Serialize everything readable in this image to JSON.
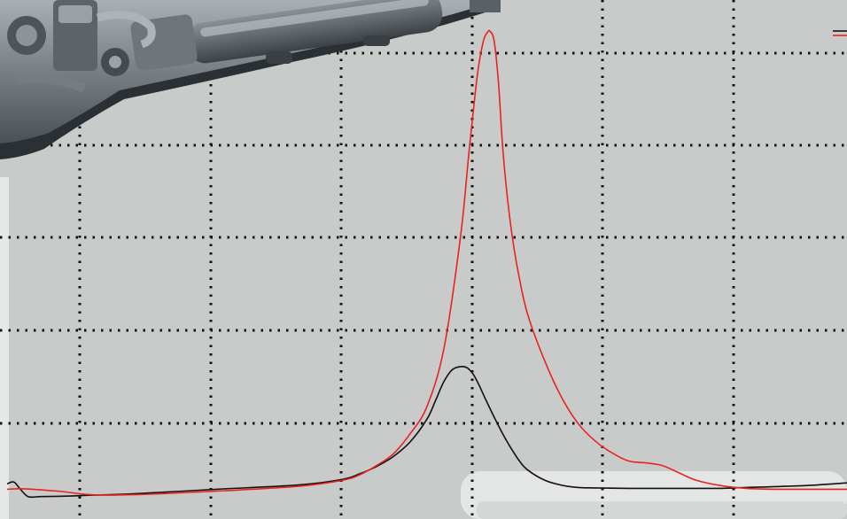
{
  "chart_data": {
    "type": "line",
    "title": "",
    "xlabel": "",
    "ylabel": "",
    "xlim": [
      0,
      1
    ],
    "ylim": [
      0,
      1
    ],
    "grid": true,
    "legend": "top-right",
    "series": [
      {
        "color": "#111111",
        "x": [
          0.0,
          0.008,
          0.015,
          0.025,
          0.04,
          0.07,
          0.1,
          0.15,
          0.25,
          0.35,
          0.4,
          0.42,
          0.44,
          0.46,
          0.48,
          0.5,
          0.51,
          0.52,
          0.53,
          0.54,
          0.548,
          0.555,
          0.562,
          0.57,
          0.58,
          0.59,
          0.6,
          0.61,
          0.62,
          0.64,
          0.66,
          0.68,
          0.7,
          0.74,
          0.8,
          0.85,
          0.88,
          0.92,
          0.96,
          1.0
        ],
        "y": [
          0.05,
          0.054,
          0.04,
          0.022,
          0.022,
          0.023,
          0.025,
          0.028,
          0.038,
          0.048,
          0.06,
          0.072,
          0.088,
          0.11,
          0.142,
          0.192,
          0.232,
          0.274,
          0.3,
          0.307,
          0.304,
          0.29,
          0.266,
          0.234,
          0.196,
          0.16,
          0.128,
          0.1,
          0.08,
          0.058,
          0.047,
          0.042,
          0.041,
          0.04,
          0.04,
          0.04,
          0.042,
          0.044,
          0.047,
          0.052
        ]
      },
      {
        "color": "#e8231f",
        "x": [
          0.0,
          0.02,
          0.06,
          0.1,
          0.15,
          0.25,
          0.35,
          0.4,
          0.42,
          0.44,
          0.46,
          0.48,
          0.5,
          0.52,
          0.54,
          0.55,
          0.56,
          0.567,
          0.572,
          0.575,
          0.58,
          0.585,
          0.59,
          0.595,
          0.602,
          0.61,
          0.62,
          0.64,
          0.66,
          0.68,
          0.7,
          0.72,
          0.74,
          0.76,
          0.78,
          0.8,
          0.82,
          0.85,
          0.88,
          0.92,
          0.96,
          1.0
        ],
        "y": [
          0.038,
          0.039,
          0.034,
          0.026,
          0.026,
          0.034,
          0.045,
          0.058,
          0.07,
          0.09,
          0.116,
          0.16,
          0.22,
          0.346,
          0.594,
          0.778,
          0.948,
          1.02,
          1.04,
          1.042,
          1.02,
          0.93,
          0.79,
          0.688,
          0.585,
          0.5,
          0.42,
          0.32,
          0.24,
          0.182,
          0.144,
          0.118,
          0.1,
          0.096,
          0.09,
          0.074,
          0.058,
          0.046,
          0.04,
          0.038,
          0.038,
          0.038
        ]
      }
    ]
  }
}
